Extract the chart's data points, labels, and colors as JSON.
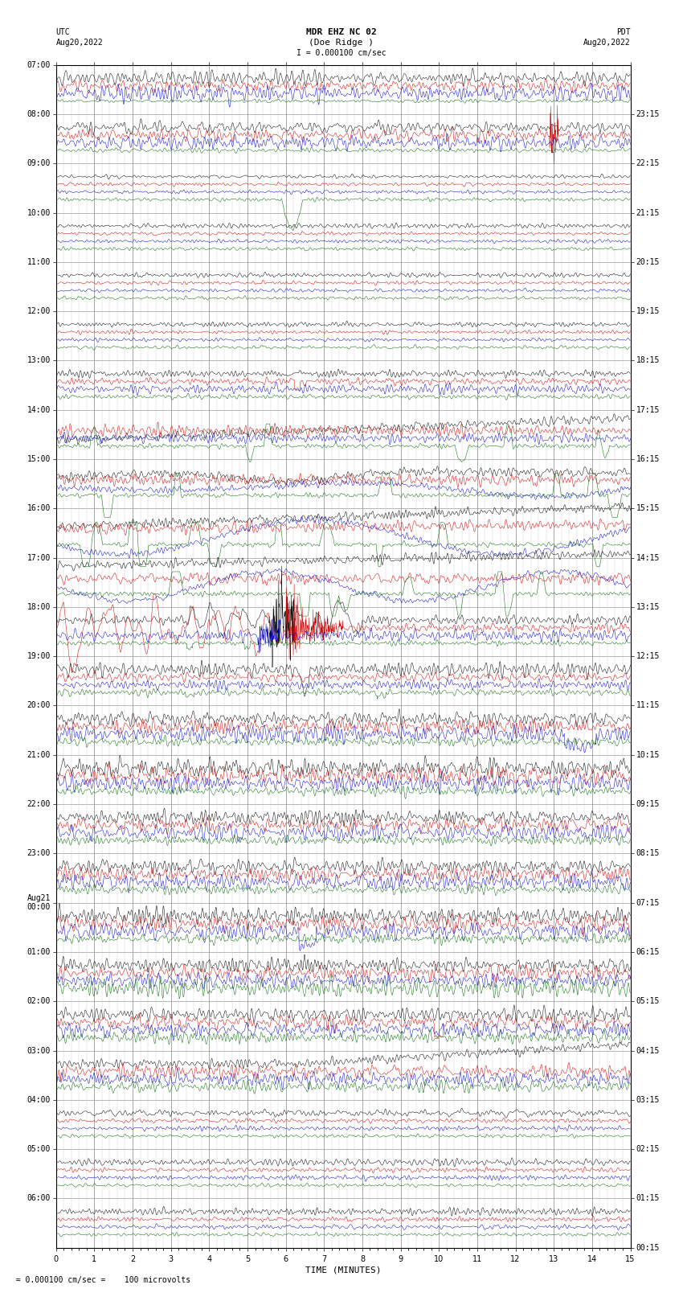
{
  "title_line1": "MDR EHZ NC 02",
  "title_line2": "(Doe Ridge )",
  "scale_label": "I = 0.000100 cm/sec",
  "left_label": "UTC",
  "left_date": "Aug20,2022",
  "right_label": "PDT",
  "right_date": "Aug20,2022",
  "xlabel": "TIME (MINUTES)",
  "bottom_note": "= 0.000100 cm/sec =    100 microvolts",
  "xlim": [
    0,
    15
  ],
  "background_color": "#ffffff",
  "grid_color": "#999999",
  "trace_colors": [
    "#000000",
    "#cc0000",
    "#0000cc",
    "#006600"
  ],
  "utc_times": [
    "07:00",
    "08:00",
    "09:00",
    "10:00",
    "11:00",
    "12:00",
    "13:00",
    "14:00",
    "15:00",
    "16:00",
    "17:00",
    "18:00",
    "19:00",
    "20:00",
    "21:00",
    "22:00",
    "23:00",
    "Aug21\n00:00",
    "01:00",
    "02:00",
    "03:00",
    "04:00",
    "05:00",
    "06:00"
  ],
  "pdt_times": [
    "00:15",
    "01:15",
    "02:15",
    "03:15",
    "04:15",
    "05:15",
    "06:15",
    "07:15",
    "08:15",
    "09:15",
    "10:15",
    "11:15",
    "12:15",
    "13:15",
    "14:15",
    "15:15",
    "16:15",
    "17:15",
    "18:15",
    "19:15",
    "20:15",
    "21:15",
    "22:15",
    "23:15"
  ],
  "num_hours": 24,
  "traces_per_hour": 4,
  "font_size": 7,
  "title_font_size": 8,
  "figsize": [
    8.5,
    16.13
  ],
  "dpi": 100
}
